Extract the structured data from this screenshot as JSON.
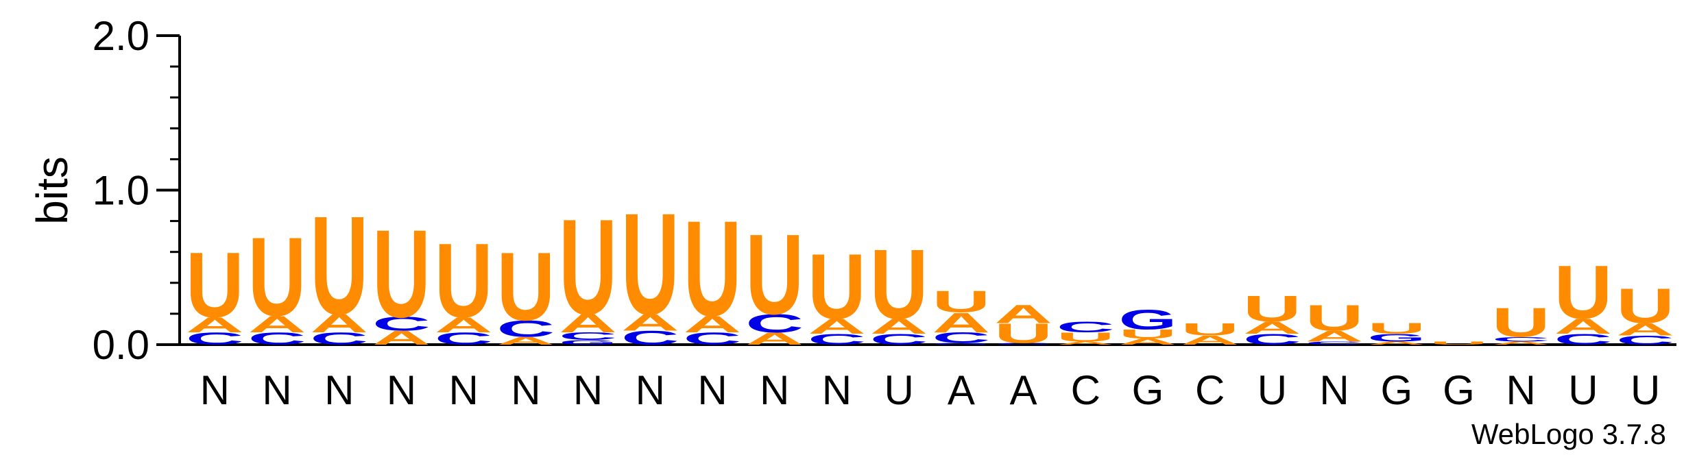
{
  "chart_data": {
    "type": "sequence-logo",
    "ylabel": "bits",
    "ylim": [
      0,
      2.0
    ],
    "y_ticks": [
      "0.0",
      "1.0",
      "2.0"
    ],
    "y_tick_values": [
      0,
      1,
      2
    ],
    "colors": {
      "U": "#ff8c00",
      "A": "#ff8c00",
      "C": "#0000e6",
      "G": "#0000e6"
    },
    "x_labels": [
      "N",
      "N",
      "N",
      "N",
      "N",
      "N",
      "N",
      "N",
      "N",
      "N",
      "N",
      "U",
      "A",
      "A",
      "C",
      "G",
      "C",
      "U",
      "N",
      "G",
      "G",
      "N",
      "U",
      "U"
    ],
    "positions": [
      [
        {
          "b": "C",
          "h": 0.08
        },
        {
          "b": "A",
          "h": 0.1
        },
        {
          "b": "U",
          "h": 0.43
        }
      ],
      [
        {
          "b": "C",
          "h": 0.08
        },
        {
          "b": "A",
          "h": 0.11
        },
        {
          "b": "U",
          "h": 0.52
        }
      ],
      [
        {
          "b": "C",
          "h": 0.08
        },
        {
          "b": "A",
          "h": 0.12
        },
        {
          "b": "U",
          "h": 0.65
        }
      ],
      [
        {
          "b": "A",
          "h": 0.09
        },
        {
          "b": "C",
          "h": 0.09
        },
        {
          "b": "U",
          "h": 0.58
        }
      ],
      [
        {
          "b": "C",
          "h": 0.08
        },
        {
          "b": "A",
          "h": 0.1
        },
        {
          "b": "U",
          "h": 0.49
        }
      ],
      [
        {
          "b": "A",
          "h": 0.05
        },
        {
          "b": "C",
          "h": 0.11
        },
        {
          "b": "U",
          "h": 0.45
        }
      ],
      [
        {
          "b": "G",
          "h": 0.03
        },
        {
          "b": "C",
          "h": 0.05
        },
        {
          "b": "A",
          "h": 0.12
        },
        {
          "b": "U",
          "h": 0.63
        }
      ],
      [
        {
          "b": "C",
          "h": 0.09
        },
        {
          "b": "A",
          "h": 0.11
        },
        {
          "b": "U",
          "h": 0.67
        }
      ],
      [
        {
          "b": "C",
          "h": 0.08
        },
        {
          "b": "A",
          "h": 0.11
        },
        {
          "b": "U",
          "h": 0.63
        }
      ],
      [
        {
          "b": "A",
          "h": 0.08
        },
        {
          "b": "C",
          "h": 0.12
        },
        {
          "b": "U",
          "h": 0.53
        }
      ],
      [
        {
          "b": "C",
          "h": 0.07
        },
        {
          "b": "A",
          "h": 0.1
        },
        {
          "b": "U",
          "h": 0.43
        }
      ],
      [
        {
          "b": "C",
          "h": 0.07
        },
        {
          "b": "A",
          "h": 0.1
        },
        {
          "b": "U",
          "h": 0.46
        }
      ],
      [
        {
          "b": "G",
          "h": 0.01
        },
        {
          "b": "C",
          "h": 0.07
        },
        {
          "b": "A",
          "h": 0.13
        },
        {
          "b": "U",
          "h": 0.14
        }
      ],
      [
        {
          "b": "C",
          "h": 0.01
        },
        {
          "b": "U",
          "h": 0.13
        },
        {
          "b": "A",
          "h": 0.12
        }
      ],
      [
        {
          "b": "A",
          "h": 0.02
        },
        {
          "b": "U",
          "h": 0.06
        },
        {
          "b": "C",
          "h": 0.07
        }
      ],
      [
        {
          "b": "A",
          "h": 0.04
        },
        {
          "b": "U",
          "h": 0.06
        },
        {
          "b": "G",
          "h": 0.13
        }
      ],
      [
        {
          "b": "A",
          "h": 0.06
        },
        {
          "b": "U",
          "h": 0.08
        }
      ],
      [
        {
          "b": "C",
          "h": 0.07
        },
        {
          "b": "A",
          "h": 0.08
        },
        {
          "b": "U",
          "h": 0.17
        }
      ],
      [
        {
          "b": "C",
          "h": 0.02
        },
        {
          "b": "A",
          "h": 0.07
        },
        {
          "b": "U",
          "h": 0.17
        }
      ],
      [
        {
          "b": "A",
          "h": 0.02
        },
        {
          "b": "G",
          "h": 0.05
        },
        {
          "b": "U",
          "h": 0.07
        }
      ],
      [
        {
          "b": "U",
          "h": 0.02
        }
      ],
      [
        {
          "b": "A",
          "h": 0.02
        },
        {
          "b": "C",
          "h": 0.03
        },
        {
          "b": "U",
          "h": 0.19
        }
      ],
      [
        {
          "b": "C",
          "h": 0.07
        },
        {
          "b": "A",
          "h": 0.1
        },
        {
          "b": "U",
          "h": 0.35
        }
      ],
      [
        {
          "b": "C",
          "h": 0.06
        },
        {
          "b": "A",
          "h": 0.08
        },
        {
          "b": "U",
          "h": 0.23
        }
      ]
    ]
  },
  "footer": {
    "version_label": "WebLogo 3.7.8"
  }
}
